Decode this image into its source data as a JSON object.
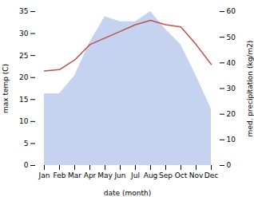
{
  "chart_data": {
    "type": "line",
    "categories": [
      "Jan",
      "Feb",
      "Mar",
      "Apr",
      "May",
      "Jun",
      "Jul",
      "Aug",
      "Sep",
      "Oct",
      "Nov",
      "Dec"
    ],
    "series": [
      {
        "type": "area",
        "axis": "y2",
        "color": "#c5d3f0",
        "values": [
          28,
          28,
          35,
          48,
          58,
          56,
          56,
          60,
          53,
          47,
          35,
          22
        ]
      },
      {
        "type": "line",
        "color": "#c0504d",
        "values": [
          21.5,
          21.8,
          24.0,
          27.5,
          29.0,
          30.5,
          32.0,
          33.0,
          32.0,
          31.5,
          27.5,
          23.0
        ]
      }
    ],
    "xlabel": "date (month)",
    "ylabel": "max temp (C)",
    "y2label": "med. precipitation (kg/m2)",
    "ylim": [
      0,
      35
    ],
    "yticks": [
      0,
      5,
      10,
      15,
      20,
      25,
      30,
      35
    ],
    "y2lim": [
      0,
      60
    ],
    "y2ticks": [
      0,
      10,
      20,
      30,
      40,
      50,
      60
    ]
  }
}
